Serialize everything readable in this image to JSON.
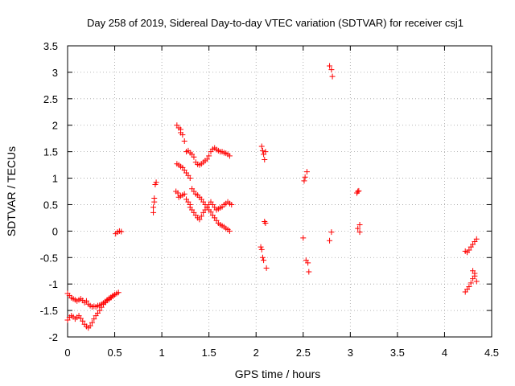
{
  "chart_data": {
    "type": "scatter",
    "title": "Day 258 of 2019, Sidereal Day-to-day VTEC variation (SDTVAR) for receiver csj1",
    "xlabel": "GPS time / hours",
    "ylabel": "SDTVAR / TECUs",
    "xlim": [
      0,
      4.5
    ],
    "ylim": [
      -2,
      3.5
    ],
    "xticks": [
      0,
      0.5,
      1,
      1.5,
      2,
      2.5,
      3,
      3.5,
      4,
      4.5
    ],
    "yticks": [
      -2,
      -1.5,
      -1,
      -0.5,
      0,
      0.5,
      1,
      1.5,
      2,
      2.5,
      3,
      3.5
    ],
    "xtick_labels": [
      "0",
      "0.5",
      "1",
      "1.5",
      "2",
      "2.5",
      "3",
      "3.5",
      "4",
      "4.5"
    ],
    "ytick_labels": [
      "-2",
      "-1.5",
      "-1",
      "-0.5",
      "0",
      "0.5",
      "1",
      "1.5",
      "2",
      "2.5",
      "3",
      "3.5"
    ],
    "grid": true,
    "marker": "+",
    "marker_color": "#ff0000",
    "series": [
      {
        "name": "SDTVAR",
        "points": [
          [
            0.0,
            -1.18
          ],
          [
            0.02,
            -1.22
          ],
          [
            0.04,
            -1.26
          ],
          [
            0.06,
            -1.28
          ],
          [
            0.08,
            -1.3
          ],
          [
            0.1,
            -1.32
          ],
          [
            0.12,
            -1.3
          ],
          [
            0.14,
            -1.28
          ],
          [
            0.16,
            -1.31
          ],
          [
            0.18,
            -1.35
          ],
          [
            0.2,
            -1.32
          ],
          [
            0.22,
            -1.38
          ],
          [
            0.24,
            -1.41
          ],
          [
            0.26,
            -1.43
          ],
          [
            0.28,
            -1.42
          ],
          [
            0.3,
            -1.43
          ],
          [
            0.32,
            -1.41
          ],
          [
            0.34,
            -1.4
          ],
          [
            0.36,
            -1.38
          ],
          [
            0.38,
            -1.36
          ],
          [
            0.4,
            -1.35
          ],
          [
            0.42,
            -1.31
          ],
          [
            0.44,
            -1.29
          ],
          [
            0.46,
            -1.26
          ],
          [
            0.48,
            -1.23
          ],
          [
            0.5,
            -1.2
          ],
          [
            0.52,
            -1.18
          ],
          [
            0.54,
            -1.16
          ],
          [
            0.0,
            -1.68
          ],
          [
            0.02,
            -1.63
          ],
          [
            0.04,
            -1.6
          ],
          [
            0.06,
            -1.62
          ],
          [
            0.08,
            -1.66
          ],
          [
            0.1,
            -1.63
          ],
          [
            0.12,
            -1.6
          ],
          [
            0.14,
            -1.65
          ],
          [
            0.16,
            -1.7
          ],
          [
            0.18,
            -1.76
          ],
          [
            0.2,
            -1.8
          ],
          [
            0.22,
            -1.83
          ],
          [
            0.24,
            -1.79
          ],
          [
            0.26,
            -1.73
          ],
          [
            0.28,
            -1.66
          ],
          [
            0.3,
            -1.6
          ],
          [
            0.32,
            -1.55
          ],
          [
            0.34,
            -1.5
          ],
          [
            0.36,
            -1.44
          ],
          [
            0.38,
            -1.38
          ],
          [
            0.4,
            -1.33
          ],
          [
            0.42,
            -1.3
          ],
          [
            0.44,
            -1.27
          ],
          [
            0.46,
            -1.25
          ],
          [
            0.48,
            -1.22
          ],
          [
            0.5,
            -1.2
          ],
          [
            0.51,
            -0.05
          ],
          [
            0.53,
            -0.02
          ],
          [
            0.55,
            0.0
          ],
          [
            0.57,
            -0.01
          ],
          [
            0.91,
            0.35
          ],
          [
            0.91,
            0.45
          ],
          [
            0.92,
            0.55
          ],
          [
            0.92,
            0.62
          ],
          [
            0.93,
            0.88
          ],
          [
            0.94,
            0.92
          ],
          [
            1.16,
            2.0
          ],
          [
            1.18,
            1.95
          ],
          [
            1.2,
            1.92
          ],
          [
            1.2,
            1.86
          ],
          [
            1.22,
            1.82
          ],
          [
            1.24,
            1.7
          ],
          [
            1.26,
            1.5
          ],
          [
            1.28,
            1.52
          ],
          [
            1.3,
            1.48
          ],
          [
            1.32,
            1.45
          ],
          [
            1.34,
            1.4
          ],
          [
            1.36,
            1.3
          ],
          [
            1.38,
            1.26
          ],
          [
            1.4,
            1.25
          ],
          [
            1.42,
            1.27
          ],
          [
            1.44,
            1.3
          ],
          [
            1.46,
            1.33
          ],
          [
            1.48,
            1.36
          ],
          [
            1.5,
            1.42
          ],
          [
            1.52,
            1.5
          ],
          [
            1.54,
            1.55
          ],
          [
            1.56,
            1.57
          ],
          [
            1.58,
            1.54
          ],
          [
            1.6,
            1.52
          ],
          [
            1.62,
            1.5
          ],
          [
            1.64,
            1.5
          ],
          [
            1.66,
            1.48
          ],
          [
            1.68,
            1.47
          ],
          [
            1.7,
            1.45
          ],
          [
            1.72,
            1.42
          ],
          [
            1.16,
            1.27
          ],
          [
            1.18,
            1.25
          ],
          [
            1.2,
            1.22
          ],
          [
            1.22,
            1.2
          ],
          [
            1.24,
            1.15
          ],
          [
            1.26,
            1.1
          ],
          [
            1.28,
            1.05
          ],
          [
            1.3,
            1.0
          ],
          [
            1.15,
            0.75
          ],
          [
            1.17,
            0.72
          ],
          [
            1.18,
            0.64
          ],
          [
            1.2,
            0.66
          ],
          [
            1.22,
            0.68
          ],
          [
            1.24,
            0.7
          ],
          [
            1.26,
            0.6
          ],
          [
            1.28,
            0.55
          ],
          [
            1.3,
            0.5
          ],
          [
            1.32,
            0.8
          ],
          [
            1.34,
            0.75
          ],
          [
            1.36,
            0.7
          ],
          [
            1.38,
            0.68
          ],
          [
            1.4,
            0.64
          ],
          [
            1.42,
            0.6
          ],
          [
            1.44,
            0.55
          ],
          [
            1.46,
            0.5
          ],
          [
            1.48,
            0.45
          ],
          [
            1.5,
            0.4
          ],
          [
            1.52,
            0.36
          ],
          [
            1.54,
            0.3
          ],
          [
            1.56,
            0.25
          ],
          [
            1.58,
            0.2
          ],
          [
            1.6,
            0.15
          ],
          [
            1.62,
            0.12
          ],
          [
            1.64,
            0.1
          ],
          [
            1.66,
            0.08
          ],
          [
            1.68,
            0.05
          ],
          [
            1.7,
            0.03
          ],
          [
            1.72,
            0.0
          ],
          [
            1.3,
            0.45
          ],
          [
            1.32,
            0.4
          ],
          [
            1.34,
            0.35
          ],
          [
            1.36,
            0.3
          ],
          [
            1.38,
            0.25
          ],
          [
            1.4,
            0.22
          ],
          [
            1.42,
            0.28
          ],
          [
            1.44,
            0.35
          ],
          [
            1.46,
            0.4
          ],
          [
            1.48,
            0.45
          ],
          [
            1.5,
            0.5
          ],
          [
            1.52,
            0.55
          ],
          [
            1.54,
            0.5
          ],
          [
            1.56,
            0.45
          ],
          [
            1.58,
            0.4
          ],
          [
            1.6,
            0.42
          ],
          [
            1.62,
            0.44
          ],
          [
            1.64,
            0.46
          ],
          [
            1.66,
            0.5
          ],
          [
            1.68,
            0.52
          ],
          [
            1.7,
            0.55
          ],
          [
            1.72,
            0.52
          ],
          [
            1.74,
            0.5
          ],
          [
            2.06,
            1.6
          ],
          [
            2.07,
            1.52
          ],
          [
            2.08,
            1.45
          ],
          [
            2.09,
            1.35
          ],
          [
            2.1,
            1.5
          ],
          [
            2.05,
            -0.3
          ],
          [
            2.06,
            -0.35
          ],
          [
            2.07,
            -0.5
          ],
          [
            2.08,
            -0.55
          ],
          [
            2.09,
            0.18
          ],
          [
            2.1,
            0.15
          ],
          [
            2.11,
            -0.7
          ],
          [
            2.5,
            -0.13
          ],
          [
            2.51,
            0.95
          ],
          [
            2.52,
            1.02
          ],
          [
            2.53,
            -0.55
          ],
          [
            2.54,
            1.12
          ],
          [
            2.55,
            -0.6
          ],
          [
            2.56,
            -0.77
          ],
          [
            2.78,
            3.12
          ],
          [
            2.8,
            3.05
          ],
          [
            2.81,
            2.92
          ],
          [
            2.78,
            -0.18
          ],
          [
            2.8,
            -0.02
          ],
          [
            3.07,
            0.72
          ],
          [
            3.08,
            0.75
          ],
          [
            3.09,
            0.76
          ],
          [
            3.08,
            0.05
          ],
          [
            3.1,
            0.12
          ],
          [
            3.1,
            -0.02
          ],
          [
            4.22,
            -1.15
          ],
          [
            4.24,
            -1.1
          ],
          [
            4.26,
            -1.05
          ],
          [
            4.28,
            -0.98
          ],
          [
            4.3,
            -0.9
          ],
          [
            4.32,
            -0.85
          ],
          [
            4.22,
            -0.38
          ],
          [
            4.24,
            -0.4
          ],
          [
            4.26,
            -0.36
          ],
          [
            4.28,
            -0.3
          ],
          [
            4.3,
            -0.25
          ],
          [
            4.32,
            -0.2
          ],
          [
            4.34,
            -0.15
          ],
          [
            4.3,
            -0.75
          ],
          [
            4.32,
            -0.8
          ],
          [
            4.34,
            -0.95
          ]
        ]
      }
    ]
  }
}
